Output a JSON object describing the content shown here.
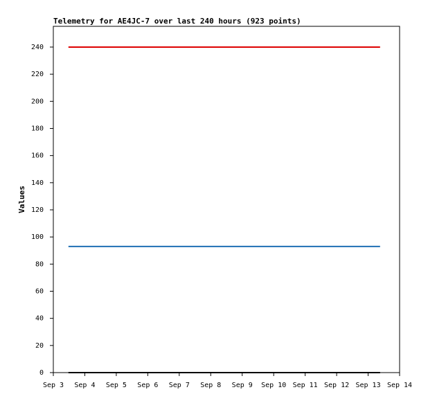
{
  "chart_data": {
    "type": "line",
    "title": "Telemetry for AE4JC-7 over last 240 hours (923 points)",
    "y_label": "Values",
    "x": [
      3.48,
      13.38
    ],
    "series": [
      {
        "color": "#dd0000",
        "values": [
          240,
          240
        ]
      },
      {
        "color": "#1f6fb4",
        "values": [
          93,
          93
        ]
      },
      {
        "color": "#000000",
        "values": [
          0,
          0
        ]
      }
    ],
    "xlim": [
      3,
      14
    ],
    "xticks": [
      {
        "value": 3,
        "label": "Sep 3"
      },
      {
        "value": 4,
        "label": "Sep 4"
      },
      {
        "value": 5,
        "label": "Sep 5"
      },
      {
        "value": 6,
        "label": "Sep 6"
      },
      {
        "value": 7,
        "label": "Sep 7"
      },
      {
        "value": 8,
        "label": "Sep 8"
      },
      {
        "value": 9,
        "label": "Sep 9"
      },
      {
        "value": 10,
        "label": "Sep 10"
      },
      {
        "value": 11,
        "label": "Sep 11"
      },
      {
        "value": 12,
        "label": "Sep 12"
      },
      {
        "value": 13,
        "label": "Sep 13"
      },
      {
        "value": 14,
        "label": "Sep 14"
      }
    ],
    "ylim": [
      0,
      255.3
    ],
    "yticks": [
      0,
      20,
      40,
      60,
      80,
      100,
      120,
      140,
      160,
      180,
      200,
      220,
      240
    ],
    "grid": false
  }
}
